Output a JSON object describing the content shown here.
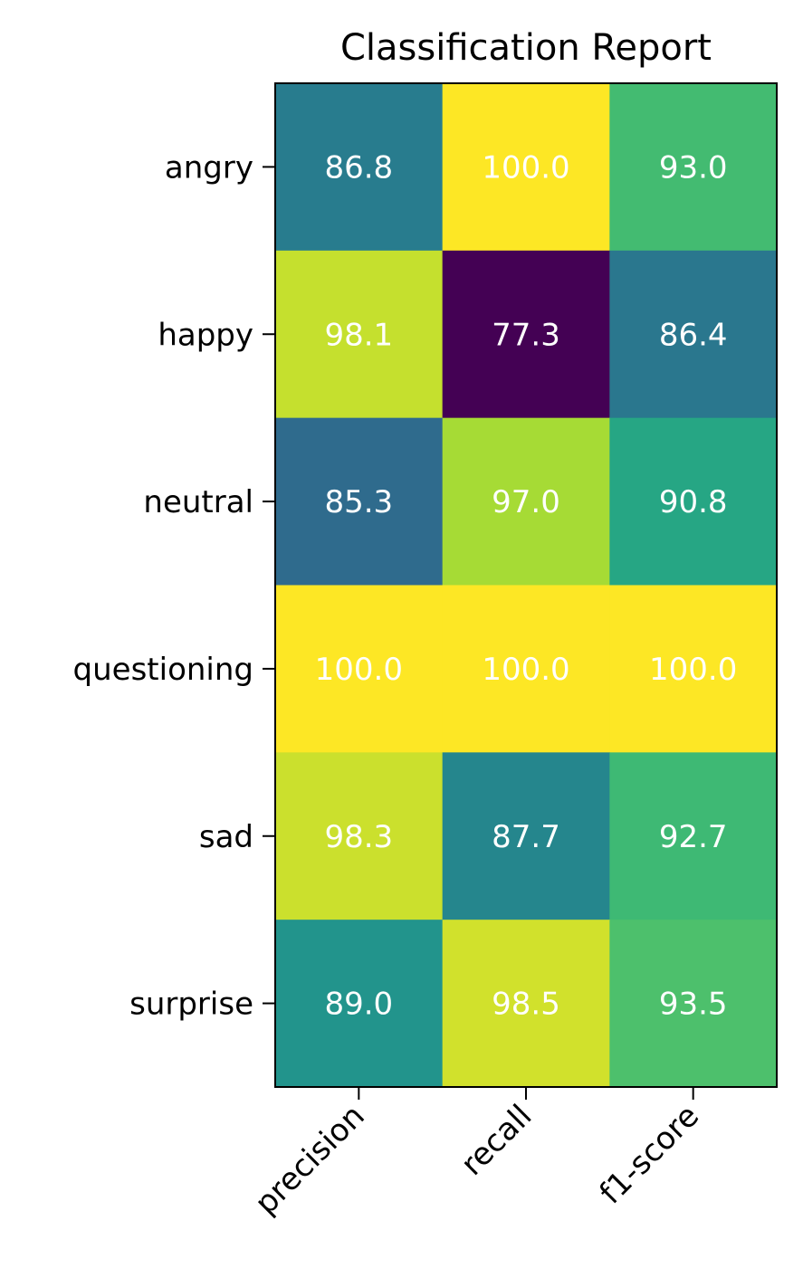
{
  "chart_data": {
    "type": "heatmap",
    "title": "Classification Report",
    "columns": [
      "precision",
      "recall",
      "f1-score"
    ],
    "rows": [
      "angry",
      "happy",
      "neutral",
      "questioning",
      "sad",
      "surprise"
    ],
    "values": [
      [
        86.8,
        100.0,
        93.0
      ],
      [
        98.1,
        77.3,
        86.4
      ],
      [
        85.3,
        97.0,
        90.8
      ],
      [
        100.0,
        100.0,
        100.0
      ],
      [
        98.3,
        87.7,
        92.7
      ],
      [
        89.0,
        98.5,
        93.5
      ]
    ],
    "labels": [
      [
        "86.8",
        "100.0",
        "93.0"
      ],
      [
        "98.1",
        "77.3",
        "86.4"
      ],
      [
        "85.3",
        "97.0",
        "90.8"
      ],
      [
        "100.0",
        "100.0",
        "100.0"
      ],
      [
        "98.3",
        "87.7",
        "92.7"
      ],
      [
        "89.0",
        "98.5",
        "93.5"
      ]
    ],
    "colormap": "viridis",
    "color_range": [
      77.3,
      100.0
    ],
    "cell_text_color": "#ffffff",
    "xtick_rotation": "45 degrees, right-aligned"
  }
}
